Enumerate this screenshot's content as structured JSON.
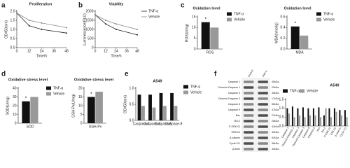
{
  "chart_data": [
    {
      "type": "line",
      "panel": "a",
      "title": "Proliferation",
      "x_label": "Time/h",
      "y_label": "OD450(nm)",
      "x": [
        0,
        12,
        24,
        48
      ],
      "xlim": [
        0,
        48
      ],
      "xticks": [
        0,
        12,
        24,
        36,
        48
      ],
      "ylim": [
        0,
        2
      ],
      "yticks": [
        {
          "value": 0,
          "label": "0.0"
        },
        {
          "value": 0.5,
          "label": "0.5"
        },
        {
          "value": 1,
          "label": "1.0"
        },
        {
          "value": 1.5,
          "label": "1.5"
        },
        {
          "value": 2,
          "label": "2.0"
        }
      ],
      "series": [
        {
          "color": "#222222",
          "values": [
            1.9,
            1.2,
            1.0,
            0.8
          ]
        },
        {
          "color": "#888888",
          "values": [
            1.9,
            1.5,
            1.35,
            1.1
          ]
        }
      ]
    },
    {
      "type": "line",
      "panel": "b",
      "title": "Viability",
      "x_label": "Time/h",
      "y_label": "Luminescence(RLU)",
      "x": [
        0,
        12,
        24,
        48
      ],
      "xlim": [
        0,
        48
      ],
      "xticks": [
        0,
        12,
        24,
        36,
        48
      ],
      "ylim": [
        0,
        2000
      ],
      "yticks": [
        0,
        500,
        1000,
        1500,
        2000
      ],
      "series": [
        {
          "name": "TNF-α",
          "color": "#222222",
          "values": [
            1800,
            1300,
            1000,
            700
          ]
        },
        {
          "name": "Vehicle",
          "color": "#888888",
          "values": [
            1800,
            1500,
            1300,
            1000
          ]
        }
      ]
    },
    {
      "type": "bar",
      "panel": "c",
      "title": "Oxidation level",
      "y_label": "ROS(U/mg)",
      "annotation": "*",
      "categories": [
        "ROS"
      ],
      "ylim": [
        0,
        15
      ],
      "yticks": [
        0,
        5,
        10,
        15
      ],
      "series": [
        {
          "name": "TNF-α",
          "color": "#111111",
          "values": [
            12.5
          ]
        },
        {
          "name": "Vehicle",
          "color": "#999999",
          "values": [
            10
          ]
        }
      ]
    },
    {
      "type": "bar",
      "title": "Oxidation level",
      "y_label": "MDA(nmol/g)",
      "annotation": "*",
      "categories": [
        "MDA"
      ],
      "ylim": [
        0,
        0.6
      ],
      "yticks": [
        {
          "value": 0,
          "label": "0.0"
        },
        {
          "value": 0.2,
          "label": "0.2"
        },
        {
          "value": 0.4,
          "label": "0.4"
        },
        {
          "value": 0.6,
          "label": "0.6"
        }
      ],
      "series": [
        {
          "name": "TNF-α",
          "color": "#111111",
          "values": [
            0.42
          ]
        },
        {
          "name": "Vehicle",
          "color": "#999999",
          "values": [
            0.25
          ]
        }
      ]
    },
    {
      "type": "bar",
      "panel": "d",
      "title": "Oxidative stress level",
      "y_label": "SOD(U/mg)",
      "annotation": "*",
      "categories": [
        "SOD"
      ],
      "ylim": [
        0,
        40
      ],
      "yticks": [
        0,
        10,
        20,
        30,
        40
      ],
      "series": [
        {
          "name": "TNF-α",
          "color": "#111111",
          "values": [
            25
          ]
        },
        {
          "name": "Vehicle",
          "color": "#999999",
          "values": [
            30
          ]
        }
      ]
    },
    {
      "type": "bar",
      "title": "Oxidative stress level",
      "y_label": "GSH-Px(U/mg)",
      "annotation": "*",
      "categories": [
        "GSH-Px"
      ],
      "ylim": [
        0,
        20
      ],
      "yticks": [
        0,
        5,
        10,
        15,
        20
      ],
      "series": [
        {
          "color": "#111111",
          "values": [
            15
          ]
        },
        {
          "color": "#999999",
          "values": [
            18
          ]
        }
      ]
    },
    {
      "type": "bar",
      "panel": "e",
      "title": "A549",
      "y_label": "OD450(nm)",
      "categories": [
        "Caspase-1",
        "Caspase-3",
        "Caspase-8",
        "Caspase-9"
      ],
      "ylim": [
        0,
        1
      ],
      "yticks": [
        {
          "value": 0,
          "label": "0.0"
        },
        {
          "value": 0.5,
          "label": "0.5"
        },
        {
          "value": 1,
          "label": "1.0"
        }
      ],
      "series": [
        {
          "name": "TNF-α",
          "color": "#111111",
          "values": [
            0.8,
            0.8,
            0.85,
            0.85
          ]
        },
        {
          "name": "Vehicle",
          "color": "#999999",
          "values": [
            0.45,
            0.4,
            0.45,
            0.45
          ]
        }
      ]
    },
    {
      "type": "bar",
      "panel": "f",
      "title": "A549",
      "categories": [
        "Caspase 1",
        "Cleaved Caspase 1",
        "Caspase 3",
        "Cleaved Caspase 3",
        "Caspase 8",
        "Caspase 9",
        "Bax",
        "Bcl-2",
        "P-ERK1/2",
        "ERK1/2",
        "β-catenin",
        "Cyclin D1"
      ],
      "ylim": [
        0,
        1.5
      ],
      "yticks": [
        {
          "value": 0,
          "label": "0.0"
        },
        {
          "value": 0.5,
          "label": "0.5"
        },
        {
          "value": 1,
          "label": "1.0"
        },
        {
          "value": 1.5,
          "label": "1.5"
        }
      ],
      "series": [
        {
          "name": "TNF-α",
          "color": "#111111",
          "values": [
            1.0,
            1.1,
            1.0,
            1.05,
            1.0,
            1.0,
            1.05,
            0.6,
            1.0,
            1.0,
            0.9,
            0.9
          ]
        },
        {
          "name": "Vehicle",
          "color": "#999999",
          "values": [
            0.7,
            0.5,
            0.6,
            0.5,
            0.6,
            0.6,
            0.5,
            1.0,
            0.5,
            0.8,
            0.6,
            0.5
          ]
        }
      ]
    }
  ],
  "blot": {
    "columns": [
      "Control",
      "TNF-α"
    ],
    "rows": [
      {
        "label": "Caspase 1",
        "size": "45kDa"
      },
      {
        "label": "Cleaved Caspase 1",
        "size": "20kDa"
      },
      {
        "label": "Caspase 3",
        "size": "35kDa"
      },
      {
        "label": "Cleaved Caspase 3",
        "size": "17kDa"
      },
      {
        "label": "Caspase 8",
        "size": "55kDa"
      },
      {
        "label": "Caspase 9",
        "size": "47kDa"
      },
      {
        "label": "Bax",
        "size": "21kDa"
      },
      {
        "label": "Bcl-2",
        "size": "26kDa"
      },
      {
        "label": "P-ERK1/2",
        "size": "42kDa"
      },
      {
        "label": "ERK1/2",
        "size": "42kDa"
      },
      {
        "label": "β-catenin",
        "size": "92kDa"
      },
      {
        "label": "Cyclin D1",
        "size": "36kDa"
      },
      {
        "label": "β-actin",
        "size": "42kDa"
      }
    ]
  }
}
